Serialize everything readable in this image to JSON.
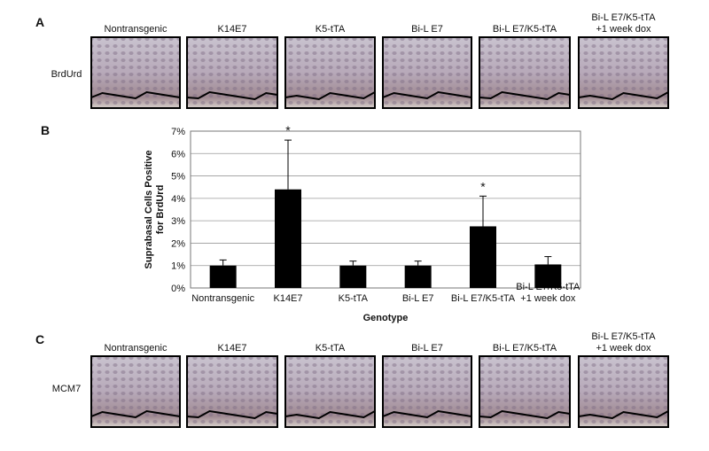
{
  "panel_a": {
    "label": "A",
    "row_label": "BrdUrd",
    "columns": [
      "Nontransgenic",
      "K14E7",
      "K5-tTA",
      "Bi-L E7",
      "Bi-L E7/K5-tTA",
      "Bi-L E7/K5-tTA\n+1 week dox"
    ]
  },
  "chart_data": {
    "type": "bar",
    "panel_label": "B",
    "y_label": "Suprabasal Cells Positive\nfor BrdUrd",
    "x_label": "Genotype",
    "categories": [
      "Nontransgenic",
      "K14E7",
      "K5-tTA",
      "Bi-L E7",
      "Bi-L E7/K5-tTA",
      "Bi-L E7/K5-tTA\n+1 week dox"
    ],
    "values": [
      1.0,
      4.4,
      1.0,
      1.0,
      2.75,
      1.05
    ],
    "errors": [
      0.25,
      2.2,
      0.2,
      0.2,
      1.35,
      0.35
    ],
    "color": "#000000",
    "annotations": [
      {
        "text": "*",
        "category": "K14E7"
      },
      {
        "text": "*",
        "category": "Bi-L E7/K5-tTA"
      }
    ],
    "ylim": [
      0,
      7
    ],
    "yticks": [
      {
        "value": 0,
        "label": "0%"
      },
      {
        "value": 1,
        "label": "1%"
      },
      {
        "value": 2,
        "label": "2%"
      },
      {
        "value": 3,
        "label": "3%"
      },
      {
        "value": 4,
        "label": "4%"
      },
      {
        "value": 5,
        "label": "5%"
      },
      {
        "value": 6,
        "label": "6%"
      },
      {
        "value": 7,
        "label": "7%"
      }
    ],
    "grid": true
  },
  "panel_c": {
    "label": "C",
    "row_label": "MCM7",
    "columns": [
      "Nontransgenic",
      "K14E7",
      "K5-tTA",
      "Bi-L E7",
      "Bi-L E7/K5-tTA",
      "Bi-L E7/K5-tTA\n+1 week dox"
    ]
  }
}
